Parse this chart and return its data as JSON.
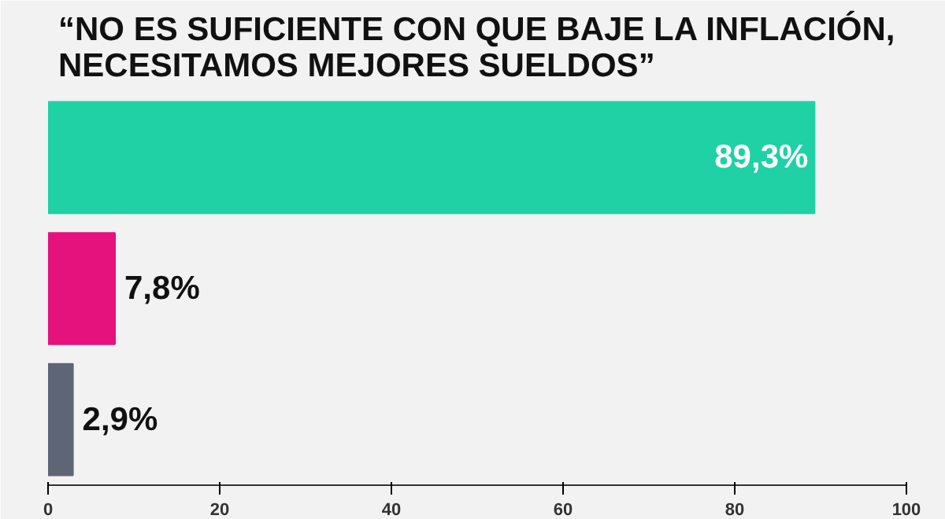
{
  "chart_data": {
    "type": "bar",
    "orientation": "horizontal",
    "title": "“NO ES SUFICIENTE CON QUE BAJE LA INFLACIÓN,\nNECESITAMOS MEJORES SUELDOS”",
    "categories": [
      null,
      null,
      null
    ],
    "values": [
      89.3,
      7.8,
      2.9
    ],
    "colors": [
      "#1fd1a5",
      "#e5127d",
      "#5d6577"
    ],
    "value_labels": [
      "89,3%",
      "7,8%",
      "2,9%"
    ],
    "xlim": [
      0,
      100
    ],
    "xticks": [
      0,
      20,
      40,
      60,
      80,
      100
    ],
    "grid": false
  }
}
